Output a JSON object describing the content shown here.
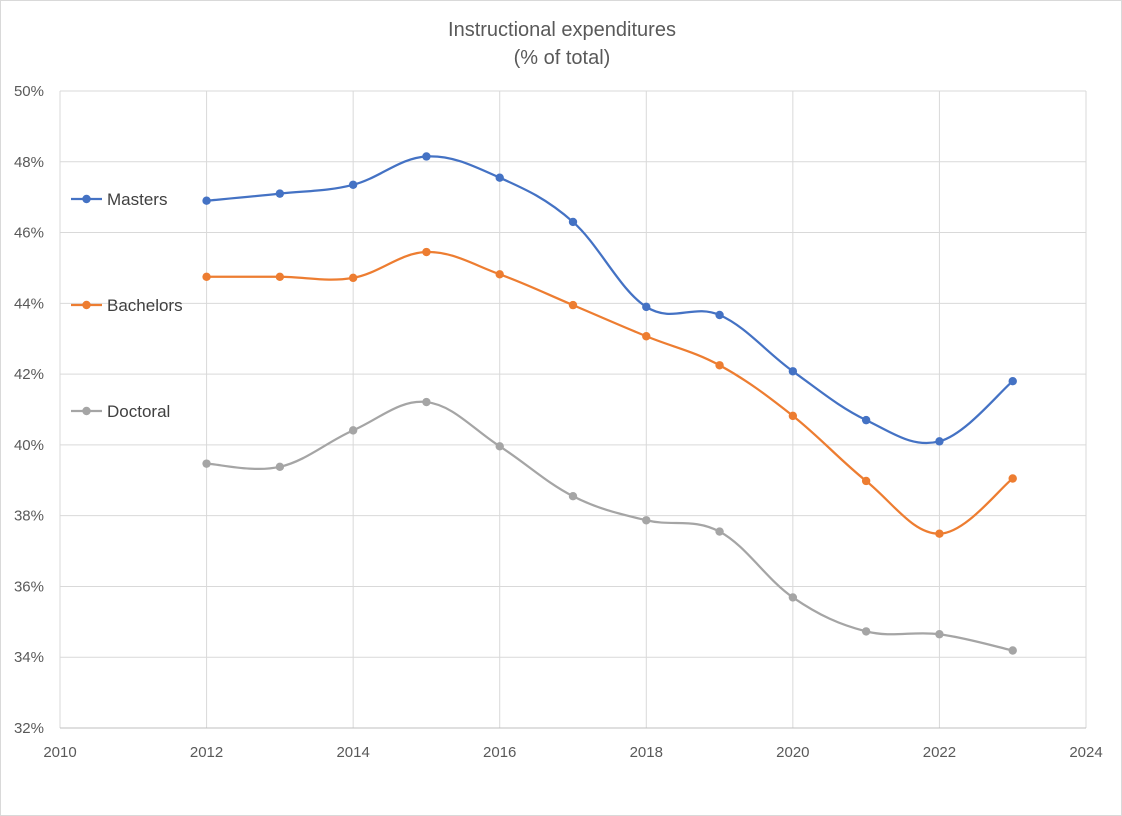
{
  "chart_data": {
    "type": "line",
    "title": "Instructional expenditures",
    "subtitle": "(% of total)",
    "xlabel": "",
    "ylabel": "",
    "xlim": [
      2010,
      2024
    ],
    "ylim": [
      0.32,
      0.5
    ],
    "x_ticks": [
      "2010",
      "2012",
      "2014",
      "2016",
      "2018",
      "2020",
      "2022",
      "2024"
    ],
    "y_ticks": [
      "32%",
      "34%",
      "36%",
      "38%",
      "40%",
      "42%",
      "44%",
      "46%",
      "48%",
      "50%"
    ],
    "grid": true,
    "legend_position": "left",
    "x": [
      2012,
      2013,
      2014,
      2015,
      2016,
      2017,
      2018,
      2019,
      2020,
      2021,
      2022,
      2023
    ],
    "series": [
      {
        "name": "Masters",
        "color": "#4472c4",
        "values": [
          0.469,
          0.471,
          0.4735,
          0.4815,
          0.4755,
          0.463,
          0.439,
          0.4367,
          0.4208,
          0.407,
          0.401,
          0.418
        ]
      },
      {
        "name": "Bachelors",
        "color": "#ed7d31",
        "values": [
          0.4475,
          0.4475,
          0.4472,
          0.4545,
          0.4482,
          0.4395,
          0.4307,
          0.4225,
          0.4082,
          0.3898,
          0.3749,
          0.3905
        ]
      },
      {
        "name": "Doctoral",
        "color": "#a5a5a5",
        "values": [
          0.3947,
          0.3938,
          0.4041,
          0.4121,
          0.3996,
          0.3855,
          0.3787,
          0.3755,
          0.3569,
          0.3473,
          0.3465,
          0.3419
        ]
      }
    ]
  }
}
